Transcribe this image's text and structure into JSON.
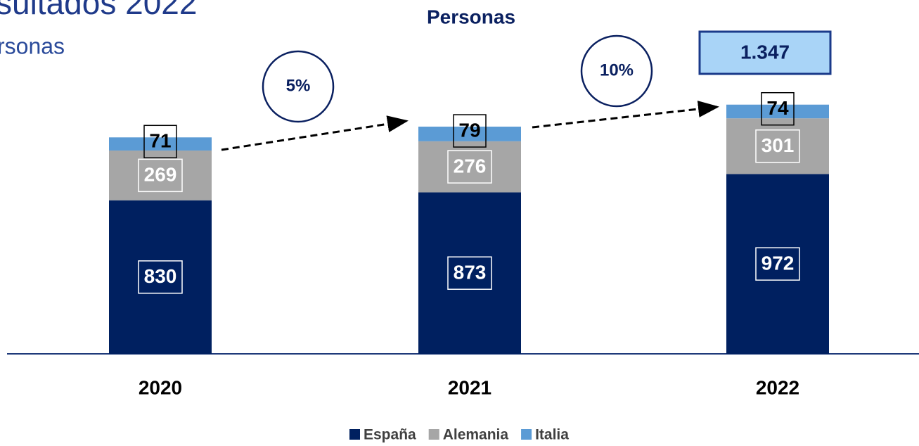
{
  "chart_data": {
    "type": "stacked_bar",
    "title": "sultados 2022",
    "subtitle": "rsonas",
    "chart_title": "Personas",
    "categories": [
      "2020",
      "2021",
      "2022"
    ],
    "series": [
      {
        "name": "España",
        "color": "#002060",
        "values": [
          830,
          873,
          972
        ]
      },
      {
        "name": "Alemania",
        "color": "#a6a6a6",
        "values": [
          269,
          276,
          301
        ]
      },
      {
        "name": "Italia",
        "color": "#5b9bd5",
        "values": [
          71,
          79,
          74
        ]
      }
    ],
    "totals": [
      null,
      null,
      {
        "value": 1347,
        "label": "1.347"
      }
    ],
    "annotations": [
      "5%",
      "10%"
    ]
  }
}
